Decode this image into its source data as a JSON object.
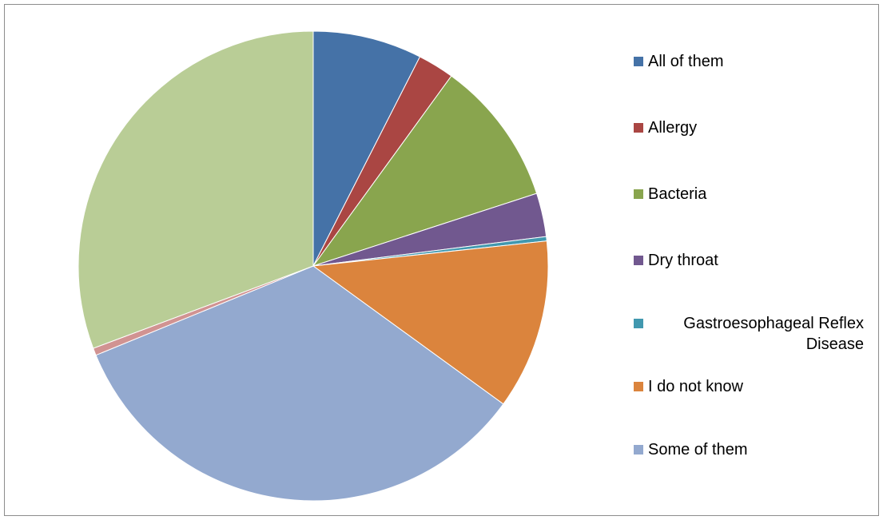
{
  "chart_data": {
    "type": "pie",
    "title": "",
    "legend_position": "right",
    "series": [
      {
        "values": [
          {
            "label": "All of them",
            "value": 7.5,
            "color": "#4572a7"
          },
          {
            "label": "Allergy",
            "value": 2.5,
            "color": "#aa4643"
          },
          {
            "label": "Bacteria",
            "value": 10.0,
            "color": "#89a54e"
          },
          {
            "label": "Dry throat",
            "value": 3.0,
            "color": "#71588f"
          },
          {
            "label": "Gastroesophageal Reflex Disease",
            "value": 0.3,
            "color": "#4198af"
          },
          {
            "label": "I do not know",
            "value": 11.7,
            "color": "#db843d"
          },
          {
            "label": "Some of them",
            "value": 33.8,
            "color": "#93a9cf"
          },
          {
            "label": "",
            "value": 0.5,
            "color": "#d19392"
          },
          {
            "label": "",
            "value": 30.7,
            "color": "#b9cd96"
          }
        ]
      }
    ]
  },
  "legend": [
    {
      "label": "All of them",
      "color": "#4572a7"
    },
    {
      "label": "Allergy",
      "color": "#aa4643"
    },
    {
      "label": "Bacteria",
      "color": "#89a54e"
    },
    {
      "label": "Dry throat",
      "color": "#71588f"
    },
    {
      "label": "Gastroesophageal Reflex Disease",
      "color": "#4198af"
    },
    {
      "label": "I do not know",
      "color": "#db843d"
    },
    {
      "label": "Some of them",
      "color": "#93a9cf"
    }
  ]
}
